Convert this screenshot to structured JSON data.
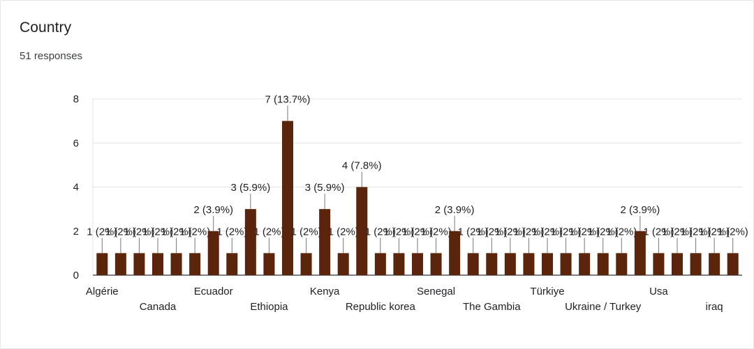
{
  "header": {
    "title": "Country",
    "responses": "51 responses"
  },
  "colors": {
    "bar": "#5a250b",
    "grid": "#e3e3e3",
    "axis": "#333333",
    "leader": "#777777"
  },
  "chart_data": {
    "type": "bar",
    "title": "Country",
    "xlabel": "",
    "ylabel": "",
    "ylim": [
      0,
      8
    ],
    "yticks": [
      0,
      2,
      4,
      6,
      8
    ],
    "grid": true,
    "categories": [
      "Algérie",
      "",
      "",
      "Canada",
      "",
      "",
      "Ecuador",
      "",
      "",
      "Ethiopia",
      "",
      "",
      "Kenya",
      "",
      "",
      "Republic korea",
      "",
      "",
      "Senegal",
      "",
      "",
      "The Gambia",
      "",
      "",
      "Türkiye",
      "",
      "",
      "Ukraine / Turkey",
      "",
      "",
      "Usa",
      "",
      "",
      "iraq",
      ""
    ],
    "values": [
      1,
      1,
      1,
      1,
      1,
      1,
      2,
      1,
      3,
      1,
      7,
      1,
      3,
      1,
      4,
      1,
      1,
      1,
      1,
      2,
      1,
      1,
      1,
      1,
      1,
      1,
      1,
      1,
      1,
      2,
      1,
      1,
      1,
      1,
      1
    ],
    "data_labels": [
      "1 (2%)",
      "1 (2%)",
      "1 (2%)",
      "1 (2%)",
      "1 (2%)",
      "1 (2%)",
      "2 (3.9%)",
      "1 (2%)",
      "3 (5.9%)",
      "1 (2%)",
      "7 (13.7%)",
      "1 (2%)",
      "3 (5.9%)",
      "1 (2%)",
      "4 (7.8%)",
      "1 (2%)",
      "1 (2%)",
      "1 (2%)",
      "1 (2%)",
      "2 (3.9%)",
      "1 (2%)",
      "1 (2%)",
      "1 (2%)",
      "1 (2%)",
      "1 (2%)",
      "1 (2%)",
      "1 (2%)",
      "1 (2%)",
      "1 (2%)",
      "2 (3.9%)",
      "1 (2%)",
      "1 (2%)",
      "1 (2%)",
      "1 (2%)",
      "1 (2%)"
    ]
  }
}
